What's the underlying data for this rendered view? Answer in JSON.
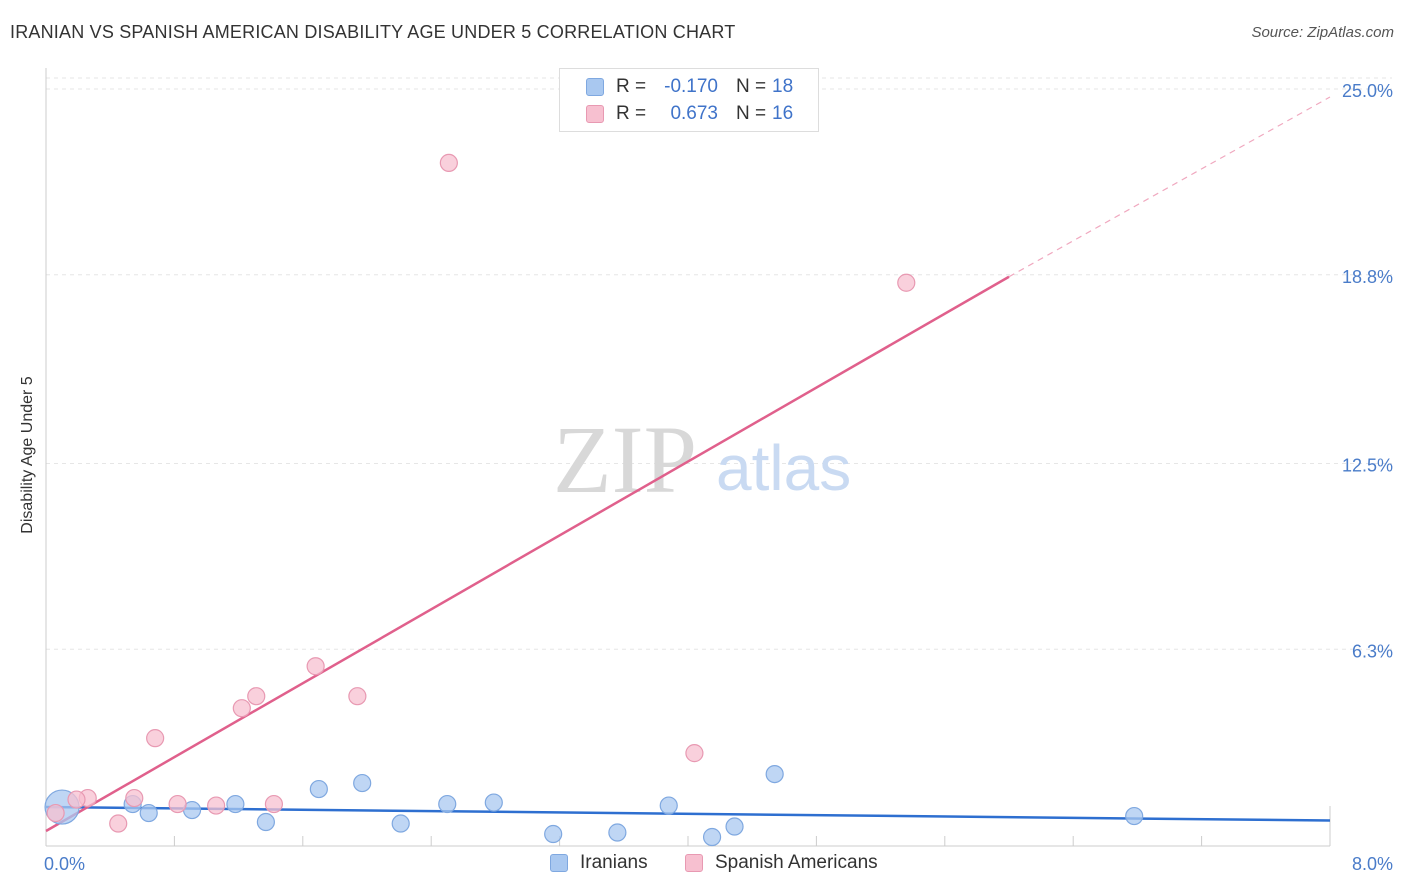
{
  "header": {
    "title": "IRANIAN VS SPANISH AMERICAN DISABILITY AGE UNDER 5 CORRELATION CHART",
    "source": "Source: ZipAtlas.com"
  },
  "watermark": {
    "zip": "ZIP",
    "atlas": "atlas"
  },
  "legend": {
    "rows": [
      {
        "r_label": "R =",
        "r_value": "-0.170",
        "n_label": "N =",
        "n_value": "18",
        "color": "#a9c8f0",
        "border": "#7fa8e0"
      },
      {
        "r_label": "R =",
        "r_value": "0.673",
        "n_label": "N =",
        "n_value": "16",
        "color": "#f7c0d0",
        "border": "#e899b2"
      }
    ]
  },
  "bottom_legend": [
    {
      "label": "Iranians",
      "color": "#a9c8f0",
      "border": "#7fa8e0"
    },
    {
      "label": "Spanish Americans",
      "color": "#f7c0d0",
      "border": "#e899b2"
    }
  ],
  "chart_data": {
    "type": "scatter",
    "title": "IRANIAN VS SPANISH AMERICAN DISABILITY AGE UNDER 5 CORRELATION CHART",
    "xlabel": "",
    "ylabel": "Disability Age Under 5",
    "xlim": [
      0,
      8
    ],
    "ylim": [
      0,
      25
    ],
    "x_tick_labels": [
      "0.0%",
      "8.0%"
    ],
    "y_ticks": [
      {
        "value": 6.3,
        "label": "6.3%"
      },
      {
        "value": 12.5,
        "label": "12.5%"
      },
      {
        "value": 18.8,
        "label": "18.8%"
      },
      {
        "value": 25.0,
        "label": "25.0%"
      }
    ],
    "grid": true,
    "series": [
      {
        "name": "Iranians",
        "color": "#a9c8f0",
        "edge": "#7fa8e0",
        "line_color": "#2e6fd0",
        "points": [
          {
            "x": 0.1,
            "y": 1.3,
            "big": true
          },
          {
            "x": 0.54,
            "y": 1.4
          },
          {
            "x": 0.64,
            "y": 1.1
          },
          {
            "x": 0.91,
            "y": 1.2
          },
          {
            "x": 1.18,
            "y": 1.4
          },
          {
            "x": 1.37,
            "y": 0.8
          },
          {
            "x": 1.7,
            "y": 1.9
          },
          {
            "x": 1.97,
            "y": 2.1
          },
          {
            "x": 2.21,
            "y": 0.75
          },
          {
            "x": 2.5,
            "y": 1.4
          },
          {
            "x": 2.79,
            "y": 1.45
          },
          {
            "x": 3.16,
            "y": 0.4
          },
          {
            "x": 3.56,
            "y": 0.45
          },
          {
            "x": 3.88,
            "y": 1.35
          },
          {
            "x": 4.15,
            "y": 0.3
          },
          {
            "x": 4.29,
            "y": 0.65
          },
          {
            "x": 4.54,
            "y": 2.4
          },
          {
            "x": 6.78,
            "y": 1.0
          }
        ],
        "trend": {
          "x0": 0.0,
          "y0": 1.3,
          "x1": 8.0,
          "y1": 0.85
        }
      },
      {
        "name": "Spanish Americans",
        "color": "#f7c0d0",
        "edge": "#e899b2",
        "line_color": "#e0608c",
        "points": [
          {
            "x": 0.06,
            "y": 1.1
          },
          {
            "x": 0.26,
            "y": 1.6
          },
          {
            "x": 0.19,
            "y": 1.55
          },
          {
            "x": 0.45,
            "y": 0.75
          },
          {
            "x": 0.55,
            "y": 1.6
          },
          {
            "x": 0.68,
            "y": 3.6
          },
          {
            "x": 0.82,
            "y": 1.4
          },
          {
            "x": 1.06,
            "y": 1.35
          },
          {
            "x": 1.22,
            "y": 4.6
          },
          {
            "x": 1.31,
            "y": 5.0
          },
          {
            "x": 1.42,
            "y": 1.4
          },
          {
            "x": 1.68,
            "y": 6.0
          },
          {
            "x": 1.94,
            "y": 5.0
          },
          {
            "x": 2.51,
            "y": 22.8
          },
          {
            "x": 4.04,
            "y": 3.1
          },
          {
            "x": 5.36,
            "y": 18.8
          }
        ],
        "trend": {
          "x0": 0.0,
          "y0": 0.5,
          "x1": 6.0,
          "y1": 19.0
        },
        "trend_dashed": {
          "x0": 6.0,
          "y0": 19.0,
          "x1": 8.0,
          "y1": 25.0
        }
      }
    ]
  }
}
